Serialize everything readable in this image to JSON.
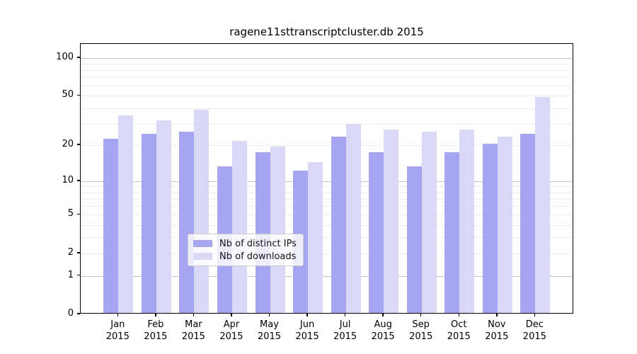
{
  "title": "ragene11sttranscriptcluster.db 2015",
  "colors": {
    "distinct_ips": "#a5a5f1",
    "downloads": "#d9d9f7",
    "minor_grid": "#ebebeb",
    "major_grid": "#c3c3c3",
    "spine": "#000000",
    "legend_border": "#cccccc"
  },
  "legend": {
    "items": [
      {
        "label": "Nb of distinct IPs",
        "color": "#a5a5f1"
      },
      {
        "label": "Nb of downloads",
        "color": "#d9d9f7"
      }
    ]
  },
  "chart_data": {
    "type": "bar",
    "title": "ragene11sttranscriptcluster.db 2015",
    "xlabel": "",
    "ylabel": "",
    "year": "2015",
    "categories": [
      "Jan",
      "Feb",
      "Mar",
      "Apr",
      "May",
      "Jun",
      "Jul",
      "Aug",
      "Sep",
      "Oct",
      "Nov",
      "Dec"
    ],
    "series": [
      {
        "name": "Nb of distinct IPs",
        "color": "#a5a5f1",
        "values": [
          22,
          24,
          25,
          13,
          17,
          12,
          23,
          17,
          13,
          17,
          20,
          24
        ]
      },
      {
        "name": "Nb of downloads",
        "color": "#d9d9f7",
        "values": [
          34,
          31,
          38,
          21,
          19,
          14,
          29,
          26,
          25,
          26,
          23,
          48
        ]
      }
    ],
    "y_scale": "log1p",
    "y_axis_top_value": 129,
    "y_ticks": [
      0,
      1,
      2,
      5,
      10,
      20,
      50,
      100
    ],
    "major_gridlines": [
      1,
      10,
      100
    ],
    "minor_gridlines": [
      2,
      3,
      4,
      5,
      6,
      7,
      8,
      9,
      20,
      30,
      40,
      50,
      60,
      70,
      80,
      90
    ],
    "grid": true,
    "legend_position": "lower-center-inside"
  }
}
